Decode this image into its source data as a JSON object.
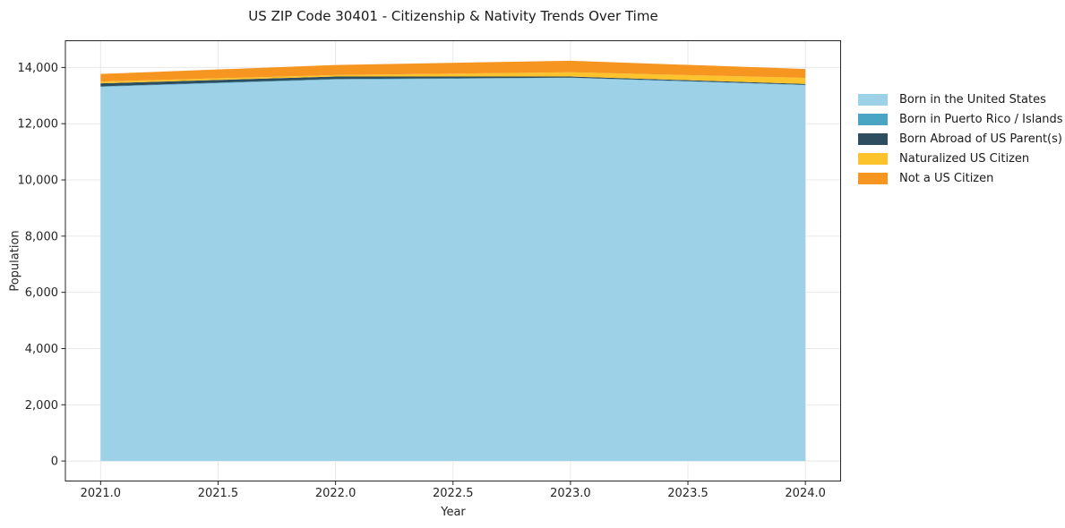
{
  "title": "US ZIP Code 30401 - Citizenship & Nativity Trends Over Time",
  "chart_data": {
    "type": "area",
    "stacked": true,
    "title": "US ZIP Code 30401 - Citizenship & Nativity Trends Over Time",
    "xlabel": "Year",
    "ylabel": "Population",
    "x": [
      2021,
      2022,
      2023,
      2024
    ],
    "series": [
      {
        "name": "Born in the United States",
        "color": "#9CD1E8",
        "values": [
          13310,
          13570,
          13630,
          13370
        ]
      },
      {
        "name": "Born in Puerto Rico / Islands",
        "color": "#4AA5C5",
        "values": [
          20,
          20,
          10,
          15
        ]
      },
      {
        "name": "Born Abroad of US Parent(s)",
        "color": "#2E4D5E",
        "values": [
          105,
          90,
          40,
          30
        ]
      },
      {
        "name": "Naturalized US Citizen",
        "color": "#FCC32D",
        "values": [
          65,
          50,
          150,
          215
        ]
      },
      {
        "name": "Not a US Citizen",
        "color": "#F79521",
        "values": [
          270,
          360,
          410,
          315
        ]
      }
    ],
    "totals": [
      13770,
      14090,
      14240,
      13945
    ],
    "xlim": [
      2020.85,
      2024.15
    ],
    "ylim": [
      -712,
      14952
    ],
    "xticks": {
      "values": [
        2021.0,
        2021.5,
        2022.0,
        2022.5,
        2023.0,
        2023.5,
        2024.0
      ],
      "labels": [
        "2021.0",
        "2021.5",
        "2022.0",
        "2022.5",
        "2023.0",
        "2023.5",
        "2024.0"
      ]
    },
    "yticks": {
      "values": [
        0,
        2000,
        4000,
        6000,
        8000,
        10000,
        12000,
        14000
      ],
      "labels": [
        "0",
        "2,000",
        "4,000",
        "6,000",
        "8,000",
        "10,000",
        "12,000",
        "14,000"
      ]
    },
    "grid": true,
    "legend_position": "right-outside",
    "style": {
      "grid_color": "#e8e8e8",
      "spine_color": "#262626",
      "tick_text_color": "#262626",
      "background": "#ffffff"
    }
  }
}
